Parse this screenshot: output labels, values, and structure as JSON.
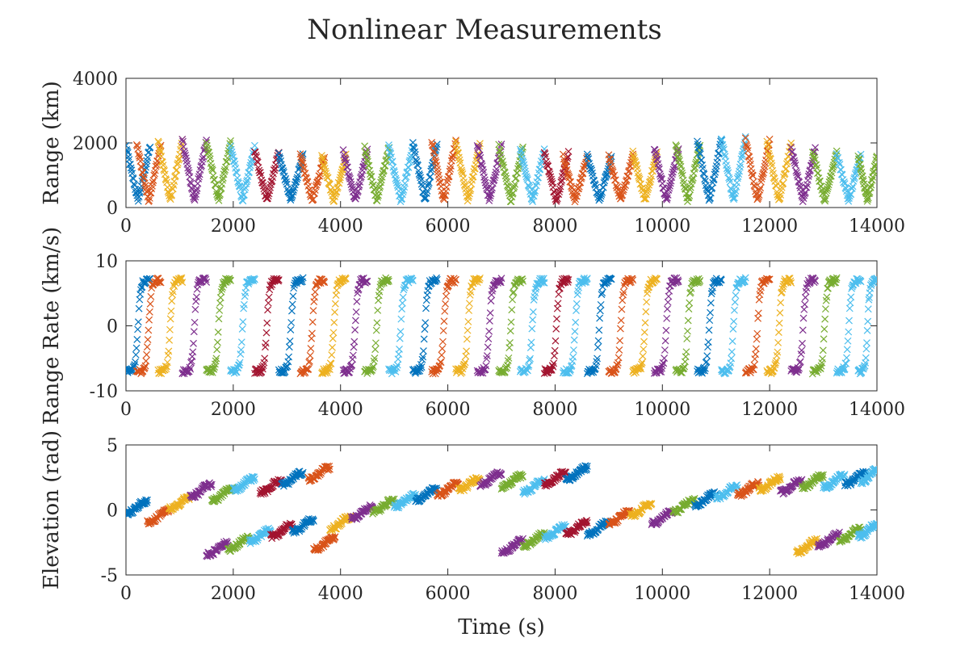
{
  "chart_data": {
    "title": "Nonlinear Measurements",
    "colors": [
      "#0072BD",
      "#D95319",
      "#EDB120",
      "#7E2F8E",
      "#77AC30",
      "#4DBEEE",
      "#A2142F"
    ],
    "marker": "x",
    "panels": [
      {
        "type": "scatter",
        "ylabel": "Range (km)",
        "xlabel": "",
        "xlim": [
          0,
          14000
        ],
        "ylim": [
          0,
          4000
        ],
        "xticks": [
          0,
          2000,
          4000,
          6000,
          8000,
          10000,
          12000,
          14000
        ],
        "xtick_labels": [
          "0",
          "2000",
          "4000",
          "6000",
          "8000",
          "10000",
          "12000",
          "14000"
        ],
        "yticks": [
          0,
          2000,
          4000
        ],
        "ytick_labels": [
          "0",
          "2000",
          "4000"
        ],
        "passes": [
          [
            0,
            450,
            1900,
            1
          ],
          [
            200,
            650,
            1950,
            2
          ],
          [
            600,
            1050,
            2050,
            3
          ],
          [
            1050,
            1500,
            2100,
            4
          ],
          [
            1500,
            1950,
            2050,
            5
          ],
          [
            1950,
            2400,
            1900,
            6
          ],
          [
            2400,
            2850,
            1750,
            7
          ],
          [
            2850,
            3300,
            1650,
            1
          ],
          [
            3250,
            3700,
            1600,
            2
          ],
          [
            3650,
            4100,
            1600,
            3
          ],
          [
            4050,
            4500,
            1750,
            4
          ],
          [
            4450,
            4900,
            1850,
            5
          ],
          [
            4900,
            5350,
            1900,
            6
          ],
          [
            5350,
            5800,
            2000,
            1
          ],
          [
            5700,
            6150,
            2050,
            2
          ],
          [
            6150,
            6600,
            2000,
            3
          ],
          [
            6550,
            7000,
            1950,
            4
          ],
          [
            6950,
            7400,
            1900,
            5
          ],
          [
            7350,
            7800,
            1800,
            6
          ],
          [
            7800,
            8250,
            1700,
            7
          ],
          [
            8150,
            8600,
            1600,
            2
          ],
          [
            8600,
            9050,
            1600,
            1
          ],
          [
            9000,
            9450,
            1600,
            2
          ],
          [
            9450,
            9900,
            1700,
            3
          ],
          [
            9850,
            10300,
            1850,
            4
          ],
          [
            10250,
            10700,
            1950,
            5
          ],
          [
            10650,
            11100,
            2100,
            1
          ],
          [
            11100,
            11550,
            2150,
            6
          ],
          [
            11550,
            12000,
            2100,
            2
          ],
          [
            11950,
            12400,
            2000,
            3
          ],
          [
            12400,
            12850,
            1850,
            4
          ],
          [
            12800,
            13250,
            1750,
            5
          ],
          [
            13250,
            13700,
            1650,
            6
          ],
          [
            13650,
            14000,
            1600,
            5
          ]
        ]
      },
      {
        "type": "scatter",
        "ylabel": "Range Rate (km/s)",
        "xlabel": "",
        "xlim": [
          0,
          14000
        ],
        "ylim": [
          -10,
          10
        ],
        "xticks": [
          0,
          2000,
          4000,
          6000,
          8000,
          10000,
          12000,
          14000
        ],
        "xtick_labels": [
          "0",
          "2000",
          "4000",
          "6000",
          "8000",
          "10000",
          "12000",
          "14000"
        ],
        "yticks": [
          -10,
          0,
          10
        ],
        "ytick_labels": [
          "-10",
          "0",
          "10"
        ],
        "amplitude": 7,
        "passes": [
          [
            0,
            450,
            0,
            1
          ],
          [
            200,
            650,
            0,
            2
          ],
          [
            600,
            1050,
            0,
            3
          ],
          [
            1050,
            1500,
            0,
            4
          ],
          [
            1500,
            1950,
            0,
            5
          ],
          [
            1950,
            2400,
            0,
            6
          ],
          [
            2400,
            2850,
            0,
            7
          ],
          [
            2850,
            3300,
            0,
            1
          ],
          [
            3250,
            3700,
            0,
            2
          ],
          [
            3650,
            4100,
            0,
            3
          ],
          [
            4050,
            4500,
            0,
            4
          ],
          [
            4450,
            4900,
            0,
            5
          ],
          [
            4900,
            5350,
            0,
            6
          ],
          [
            5350,
            5800,
            0,
            1
          ],
          [
            5700,
            6150,
            0,
            2
          ],
          [
            6150,
            6600,
            0,
            3
          ],
          [
            6550,
            7000,
            0,
            4
          ],
          [
            6950,
            7400,
            0,
            5
          ],
          [
            7350,
            7800,
            0,
            6
          ],
          [
            7800,
            8250,
            0,
            7
          ],
          [
            8150,
            8600,
            0,
            6
          ],
          [
            8600,
            9050,
            0,
            1
          ],
          [
            9000,
            9450,
            0,
            2
          ],
          [
            9450,
            9900,
            0,
            3
          ],
          [
            9850,
            10300,
            0,
            4
          ],
          [
            10250,
            10700,
            0,
            5
          ],
          [
            10650,
            11100,
            0,
            1
          ],
          [
            11100,
            11550,
            0,
            6
          ],
          [
            11550,
            12000,
            0,
            2
          ],
          [
            11950,
            12400,
            0,
            3
          ],
          [
            12400,
            12850,
            0,
            4
          ],
          [
            12800,
            13250,
            0,
            5
          ],
          [
            13250,
            13700,
            0,
            6
          ],
          [
            13650,
            14000,
            0,
            6
          ]
        ]
      },
      {
        "type": "scatter",
        "ylabel": "Elevation (rad)",
        "xlabel": "Time (s)",
        "xlim": [
          0,
          14000
        ],
        "ylim": [
          -5,
          5
        ],
        "xticks": [
          0,
          2000,
          4000,
          6000,
          8000,
          10000,
          12000,
          14000
        ],
        "xtick_labels": [
          "0",
          "2000",
          "4000",
          "6000",
          "8000",
          "10000",
          "12000",
          "14000"
        ],
        "yticks": [
          -5,
          0,
          5
        ],
        "ytick_labels": [
          "-5",
          "0",
          "5"
        ],
        "passes": [
          [
            0,
            400,
            0.2,
            1
          ],
          [
            400,
            800,
            -0.5,
            2
          ],
          [
            800,
            1200,
            0.5,
            3
          ],
          [
            1200,
            1600,
            1.5,
            4
          ],
          [
            1600,
            2000,
            1.2,
            5
          ],
          [
            2000,
            2400,
            2.0,
            6
          ],
          [
            2500,
            2900,
            1.8,
            7
          ],
          [
            2900,
            3300,
            2.4,
            1
          ],
          [
            3400,
            3800,
            2.8,
            2
          ],
          [
            1500,
            1900,
            -3.0,
            4
          ],
          [
            1900,
            2300,
            -2.6,
            5
          ],
          [
            2300,
            2700,
            -2.0,
            6
          ],
          [
            2700,
            3100,
            -1.6,
            7
          ],
          [
            3100,
            3500,
            -1.2,
            1
          ],
          [
            3500,
            3900,
            -2.6,
            2
          ],
          [
            3800,
            4200,
            -1.0,
            3
          ],
          [
            4200,
            4600,
            -0.2,
            4
          ],
          [
            4600,
            5000,
            0.3,
            5
          ],
          [
            5000,
            5400,
            0.7,
            6
          ],
          [
            5400,
            5800,
            1.2,
            1
          ],
          [
            5800,
            6200,
            1.6,
            2
          ],
          [
            6200,
            6600,
            2.0,
            3
          ],
          [
            6600,
            7000,
            2.4,
            4
          ],
          [
            7000,
            7400,
            2.2,
            5
          ],
          [
            7400,
            7800,
            1.8,
            6
          ],
          [
            7800,
            8200,
            2.4,
            7
          ],
          [
            8200,
            8600,
            2.8,
            1
          ],
          [
            7000,
            7400,
            -2.8,
            4
          ],
          [
            7400,
            7800,
            -2.3,
            5
          ],
          [
            7800,
            8200,
            -1.7,
            6
          ],
          [
            8200,
            8600,
            -1.4,
            7
          ],
          [
            8600,
            9000,
            -1.4,
            1
          ],
          [
            9000,
            9400,
            -0.6,
            2
          ],
          [
            9400,
            9800,
            0.0,
            3
          ],
          [
            9800,
            10200,
            -0.6,
            4
          ],
          [
            10200,
            10600,
            0.3,
            5
          ],
          [
            10600,
            11000,
            0.8,
            1
          ],
          [
            11000,
            11400,
            1.4,
            6
          ],
          [
            11400,
            11800,
            1.6,
            2
          ],
          [
            11800,
            12200,
            2.0,
            3
          ],
          [
            12200,
            12600,
            1.8,
            4
          ],
          [
            12600,
            13000,
            2.2,
            5
          ],
          [
            13000,
            13400,
            2.2,
            6
          ],
          [
            13400,
            13800,
            2.4,
            1
          ],
          [
            13700,
            14000,
            2.6,
            6
          ],
          [
            12500,
            12900,
            -2.8,
            3
          ],
          [
            12900,
            13300,
            -2.3,
            4
          ],
          [
            13300,
            13700,
            -1.9,
            5
          ],
          [
            13650,
            14000,
            -1.6,
            6
          ]
        ]
      }
    ]
  }
}
